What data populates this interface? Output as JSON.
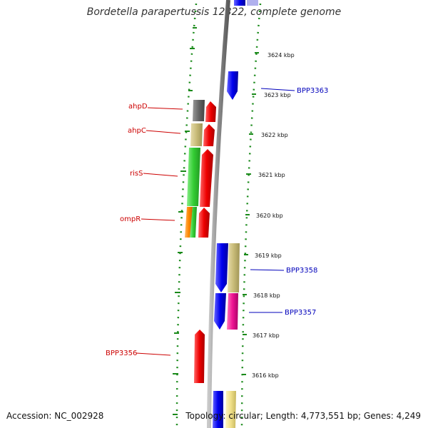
{
  "title": "Bordetella parapertussis 12822, complete genome",
  "accession": "Accession: NC_002928",
  "summary": "Topology: circular; Length: 4,773,551 bp; Genes: 4,249",
  "scale_labels": [
    "3624 kbp",
    "3623 kbp",
    "3622 kbp",
    "3621 kbp",
    "3620 kbp",
    "3619 kbp",
    "3618 kbp",
    "3617 kbp",
    "3616 kbp"
  ],
  "gene_labels_left": [
    "ahpD",
    "ahpC",
    "risS",
    "ompR",
    "BPP3356"
  ],
  "gene_labels_right": [
    "BPP3363",
    "BPP3358",
    "BPP3357"
  ],
  "colors": {
    "red_label": "#cc0000",
    "blue_label": "#0000bb",
    "backbone": "#8c8c8c",
    "ruler_dots": "#1a8a1a",
    "gene_red": "#ee0000",
    "gene_blue": "#0000ee",
    "gene_green": "#33cc33",
    "gene_khaki": "#c8bb78",
    "gene_gray": "#666666",
    "gene_orange": "#ff8800",
    "gene_pink": "#ee1493",
    "gene_yellow": "#f0e08a"
  }
}
